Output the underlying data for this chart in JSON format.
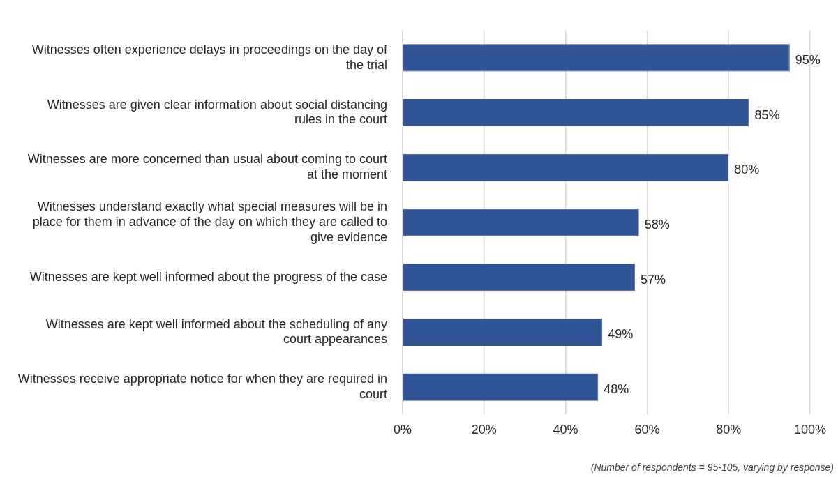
{
  "chart_data": {
    "type": "bar",
    "orientation": "horizontal",
    "categories": [
      "Witnesses often experience delays in proceedings on the day of the trial",
      "Witnesses are given clear information about social distancing rules in the court",
      "Witnesses are more concerned than usual about coming to court at the moment",
      "Witnesses understand exactly what special measures will be in place for them in advance of the day on which they are called to give evidence",
      "Witnesses are kept well informed about the progress of the case",
      "Witnesses are kept well informed about the scheduling of any court appearances",
      "Witnesses receive appropriate notice for when they are required in court"
    ],
    "values": [
      95,
      85,
      80,
      58,
      57,
      49,
      48
    ],
    "value_labels": [
      "95%",
      "85%",
      "80%",
      "58%",
      "57%",
      "49%",
      "48%"
    ],
    "color": "#2f5597",
    "xlim": [
      0,
      100
    ],
    "xticks": [
      {
        "value": 0,
        "label": "0%"
      },
      {
        "value": 20,
        "label": "20%"
      },
      {
        "value": 40,
        "label": "40%"
      },
      {
        "value": 60,
        "label": "60%"
      },
      {
        "value": 80,
        "label": "80%"
      },
      {
        "value": 100,
        "label": "100%"
      }
    ],
    "grid": "x",
    "annotations": [
      "(Number of respondents = 95-105, varying by response)"
    ]
  }
}
